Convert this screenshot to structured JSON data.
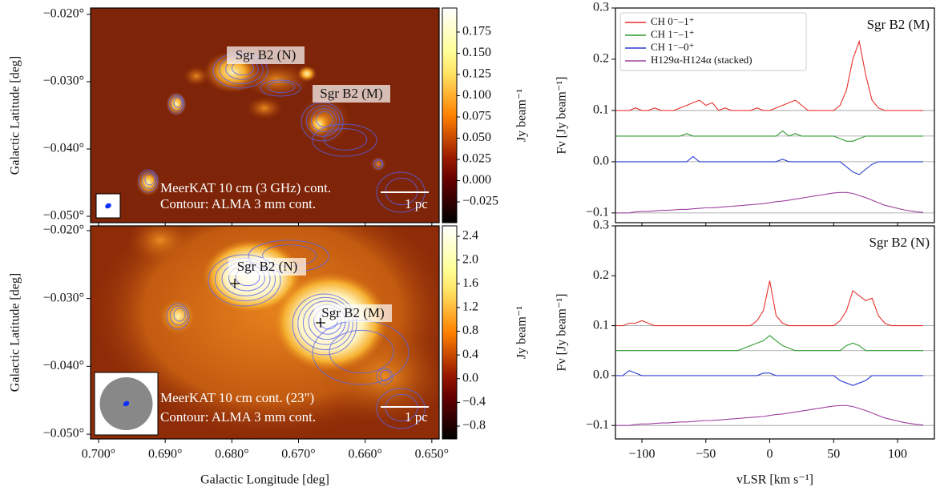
{
  "chart_data": [
    {
      "type": "image",
      "colormap": "afmhot",
      "xlim": [
        0.7012,
        0.6489
      ],
      "ylim": [
        -0.05095,
        -0.01905
      ],
      "ylabel": "Galactic Latitude [deg]",
      "yticks": [
        {
          "value": -0.02,
          "label": "−0.020°"
        },
        {
          "value": -0.03,
          "label": "−0.030°"
        },
        {
          "value": -0.04,
          "label": "−0.040°"
        },
        {
          "value": -0.05,
          "label": "−0.050°"
        }
      ],
      "colorbar": {
        "label": "Jy beam⁻¹",
        "lim": [
          -0.0495,
          0.2033
        ],
        "ticks": [
          0.175,
          {
            "value": 0.15,
            "label": "0.150"
          },
          0.125,
          {
            "value": 0.1,
            "label": "0.100"
          },
          0.075,
          {
            "value": 0.05,
            "label": "0.050"
          },
          0.025,
          {
            "value": 0,
            "label": "0.000"
          },
          {
            "value": -0.025,
            "label": "−0.025"
          }
        ]
      },
      "annotations": [
        "Sgr B2 (N)",
        "Sgr B2 (M)",
        "MeerKAT 10 cm (3 GHz) cont.",
        "Contour: ALMA 3 mm cont.",
        "1 pc"
      ]
    },
    {
      "type": "image",
      "colormap": "afmhot",
      "xlim": [
        0.7012,
        0.6489
      ],
      "ylim": [
        -0.0507,
        -0.0193
      ],
      "xlabel": "Galactic Longitude [deg]",
      "ylabel": "Galactic Latitude [deg]",
      "xticks": [
        {
          "value": 0.7,
          "label": "0.700°"
        },
        {
          "value": 0.69,
          "label": "0.690°"
        },
        {
          "value": 0.68,
          "label": "0.680°"
        },
        {
          "value": 0.67,
          "label": "0.670°"
        },
        {
          "value": 0.66,
          "label": "0.660°"
        },
        {
          "value": 0.65,
          "label": "0.650°"
        }
      ],
      "yticks": [
        {
          "value": -0.02,
          "label": "−0.020°"
        },
        {
          "value": -0.03,
          "label": "−0.030°"
        },
        {
          "value": -0.04,
          "label": "−0.040°"
        },
        {
          "value": -0.05,
          "label": "−0.050°"
        }
      ],
      "colorbar": {
        "label": "Jy beam⁻¹",
        "lim": [
          -1.016,
          2.576
        ],
        "ticks": [
          2.4,
          {
            "value": 2,
            "label": "2.0"
          },
          1.6,
          1.2,
          0.8,
          0.4,
          {
            "value": 0,
            "label": "0.0"
          },
          {
            "value": -0.4,
            "label": "−0.4"
          },
          {
            "value": -0.8,
            "label": "−0.8"
          }
        ]
      },
      "annotations": [
        "Sgr B2 (N)",
        "Sgr B2 (M)",
        "MeerKAT 10 cm cont. (23\")",
        "Contour: ALMA 3 mm cont.",
        "1 pc"
      ]
    },
    {
      "type": "line",
      "title": "Sgr B2 (M)",
      "ylabel": "Fν [Jy beam⁻¹]",
      "legend": "upper left",
      "xlim": [
        -120.7,
        128.8
      ],
      "ylim": [
        -0.119,
        0.3
      ],
      "yticks": [
        {
          "value": -0.1,
          "label": "−0.1"
        },
        {
          "value": 0,
          "label": "0.0"
        },
        0.1,
        0.2,
        0.3
      ],
      "baselines": [
        0.1,
        0.05,
        0,
        -0.1
      ],
      "x": [
        -120,
        -115,
        -110,
        -105,
        -100,
        -95,
        -90,
        -85,
        -80,
        -75,
        -70,
        -65,
        -60,
        -55,
        -50,
        -45,
        -40,
        -35,
        -30,
        -25,
        -20,
        -15,
        -10,
        -5,
        0,
        5,
        10,
        15,
        20,
        25,
        30,
        35,
        40,
        45,
        50,
        55,
        60,
        65,
        70,
        75,
        80,
        85,
        90,
        95,
        100,
        105,
        110,
        115,
        120
      ],
      "series": [
        {
          "name": "CH 0⁻–1⁺",
          "color": "#e8302c",
          "values": [
            0.1,
            0.1,
            0.1,
            0.105,
            0.1,
            0.1,
            0.105,
            0.1,
            0.1,
            0.1,
            0.105,
            0.11,
            0.115,
            0.12,
            0.11,
            0.115,
            0.1,
            0.105,
            0.1,
            0.1,
            0.1,
            0.1,
            0.105,
            0.1,
            0.1,
            0.105,
            0.11,
            0.115,
            0.12,
            0.11,
            0.1,
            0.1,
            0.1,
            0.1,
            0.1,
            0.11,
            0.14,
            0.2,
            0.235,
            0.17,
            0.12,
            0.105,
            0.1,
            0.1,
            0.1,
            0.1,
            0.1,
            0.1,
            0.1
          ]
        },
        {
          "name": "CH 1⁻–1⁺",
          "color": "#2e9a2e",
          "values": [
            0.05,
            0.05,
            0.05,
            0.05,
            0.05,
            0.05,
            0.05,
            0.05,
            0.05,
            0.05,
            0.05,
            0.055,
            0.05,
            0.05,
            0.05,
            0.05,
            0.05,
            0.05,
            0.05,
            0.05,
            0.05,
            0.05,
            0.05,
            0.05,
            0.05,
            0.05,
            0.06,
            0.05,
            0.055,
            0.05,
            0.05,
            0.05,
            0.05,
            0.05,
            0.05,
            0.045,
            0.04,
            0.04,
            0.045,
            0.05,
            0.05,
            0.05,
            0.05,
            0.05,
            0.05,
            0.05,
            0.05,
            0.05,
            0.05
          ]
        },
        {
          "name": "CH 1⁻–0⁺",
          "color": "#2b3ccf",
          "values": [
            0,
            0,
            0,
            0,
            0,
            0,
            0,
            0,
            0,
            0,
            0,
            0,
            0.01,
            0,
            0,
            0,
            0,
            0,
            0,
            0,
            0,
            0,
            0,
            0,
            0,
            0,
            0.005,
            0,
            0,
            0,
            0,
            0,
            0,
            0,
            0,
            0,
            -0.01,
            -0.02,
            -0.025,
            -0.015,
            -0.005,
            0,
            0,
            0,
            0,
            0,
            0,
            0,
            0
          ]
        },
        {
          "name": "H129α-H124α (stacked)",
          "color": "#a040a0",
          "values": [
            -0.1,
            -0.1,
            -0.1,
            -0.098,
            -0.097,
            -0.097,
            -0.096,
            -0.095,
            -0.095,
            -0.094,
            -0.093,
            -0.093,
            -0.092,
            -0.091,
            -0.09,
            -0.09,
            -0.089,
            -0.088,
            -0.087,
            -0.086,
            -0.085,
            -0.084,
            -0.083,
            -0.082,
            -0.08,
            -0.078,
            -0.077,
            -0.075,
            -0.073,
            -0.071,
            -0.069,
            -0.067,
            -0.065,
            -0.063,
            -0.061,
            -0.06,
            -0.06,
            -0.062,
            -0.066,
            -0.07,
            -0.075,
            -0.08,
            -0.085,
            -0.088,
            -0.091,
            -0.094,
            -0.096,
            -0.098,
            -0.099
          ]
        }
      ]
    },
    {
      "type": "line",
      "title": "Sgr B2 (N)",
      "xlabel": "vLSR [km s⁻¹]",
      "ylabel": "Fν [Jy beam⁻¹]",
      "xlim": [
        -120.7,
        128.8
      ],
      "ylim": [
        -0.127,
        0.3
      ],
      "xticks": [
        {
          "value": -100,
          "label": "−100"
        },
        {
          "value": -50,
          "label": "−50"
        },
        0,
        50,
        100
      ],
      "yticks": [
        {
          "value": -0.1,
          "label": "−0.1"
        },
        {
          "value": 0,
          "label": "0.0"
        },
        0.1,
        0.2,
        0.3
      ],
      "baselines": [
        0.1,
        0.05,
        0,
        -0.1
      ],
      "x": [
        -120,
        -115,
        -110,
        -105,
        -100,
        -95,
        -90,
        -85,
        -80,
        -75,
        -70,
        -65,
        -60,
        -55,
        -50,
        -45,
        -40,
        -35,
        -30,
        -25,
        -20,
        -15,
        -10,
        -5,
        0,
        5,
        10,
        15,
        20,
        25,
        30,
        35,
        40,
        45,
        50,
        55,
        60,
        65,
        70,
        75,
        80,
        85,
        90,
        95,
        100,
        105,
        110,
        115,
        120
      ],
      "series": [
        {
          "color": "#e8302c",
          "values": [
            0.1,
            0.1,
            0.105,
            0.105,
            0.11,
            0.105,
            0.1,
            0.1,
            0.1,
            0.1,
            0.1,
            0.1,
            0.1,
            0.1,
            0.1,
            0.1,
            0.1,
            0.1,
            0.1,
            0.1,
            0.1,
            0.1,
            0.11,
            0.13,
            0.19,
            0.12,
            0.105,
            0.1,
            0.1,
            0.1,
            0.1,
            0.1,
            0.1,
            0.1,
            0.1,
            0.11,
            0.13,
            0.17,
            0.16,
            0.15,
            0.155,
            0.12,
            0.105,
            0.1,
            0.1,
            0.1,
            0.1,
            0.1,
            0.1
          ]
        },
        {
          "color": "#2e9a2e",
          "values": [
            0.05,
            0.05,
            0.05,
            0.05,
            0.05,
            0.05,
            0.05,
            0.05,
            0.05,
            0.05,
            0.05,
            0.05,
            0.05,
            0.05,
            0.05,
            0.05,
            0.05,
            0.05,
            0.05,
            0.05,
            0.055,
            0.06,
            0.065,
            0.07,
            0.08,
            0.07,
            0.06,
            0.055,
            0.05,
            0.05,
            0.05,
            0.05,
            0.05,
            0.05,
            0.05,
            0.05,
            0.06,
            0.065,
            0.06,
            0.05,
            0.05,
            0.05,
            0.05,
            0.05,
            0.05,
            0.05,
            0.05,
            0.05,
            0.05
          ]
        },
        {
          "color": "#2b3ccf",
          "values": [
            0,
            0,
            0.01,
            0.005,
            0,
            0,
            0,
            0,
            0,
            0,
            0,
            0,
            0,
            0,
            0,
            0,
            0,
            0,
            0,
            0,
            0,
            0,
            0,
            0.005,
            0.005,
            0,
            0,
            0,
            0,
            0,
            0,
            0,
            0,
            0,
            0,
            -0.01,
            -0.015,
            -0.02,
            -0.015,
            -0.01,
            0,
            0,
            0,
            0,
            0,
            0,
            0,
            0,
            0
          ]
        },
        {
          "color": "#a040a0",
          "values": [
            -0.1,
            -0.1,
            -0.1,
            -0.098,
            -0.097,
            -0.097,
            -0.096,
            -0.095,
            -0.095,
            -0.094,
            -0.093,
            -0.093,
            -0.092,
            -0.091,
            -0.09,
            -0.09,
            -0.089,
            -0.088,
            -0.087,
            -0.086,
            -0.085,
            -0.084,
            -0.083,
            -0.082,
            -0.08,
            -0.078,
            -0.077,
            -0.075,
            -0.073,
            -0.071,
            -0.069,
            -0.067,
            -0.065,
            -0.063,
            -0.061,
            -0.06,
            -0.06,
            -0.062,
            -0.066,
            -0.07,
            -0.075,
            -0.08,
            -0.085,
            -0.088,
            -0.091,
            -0.094,
            -0.096,
            -0.098,
            -0.099
          ]
        }
      ]
    }
  ]
}
